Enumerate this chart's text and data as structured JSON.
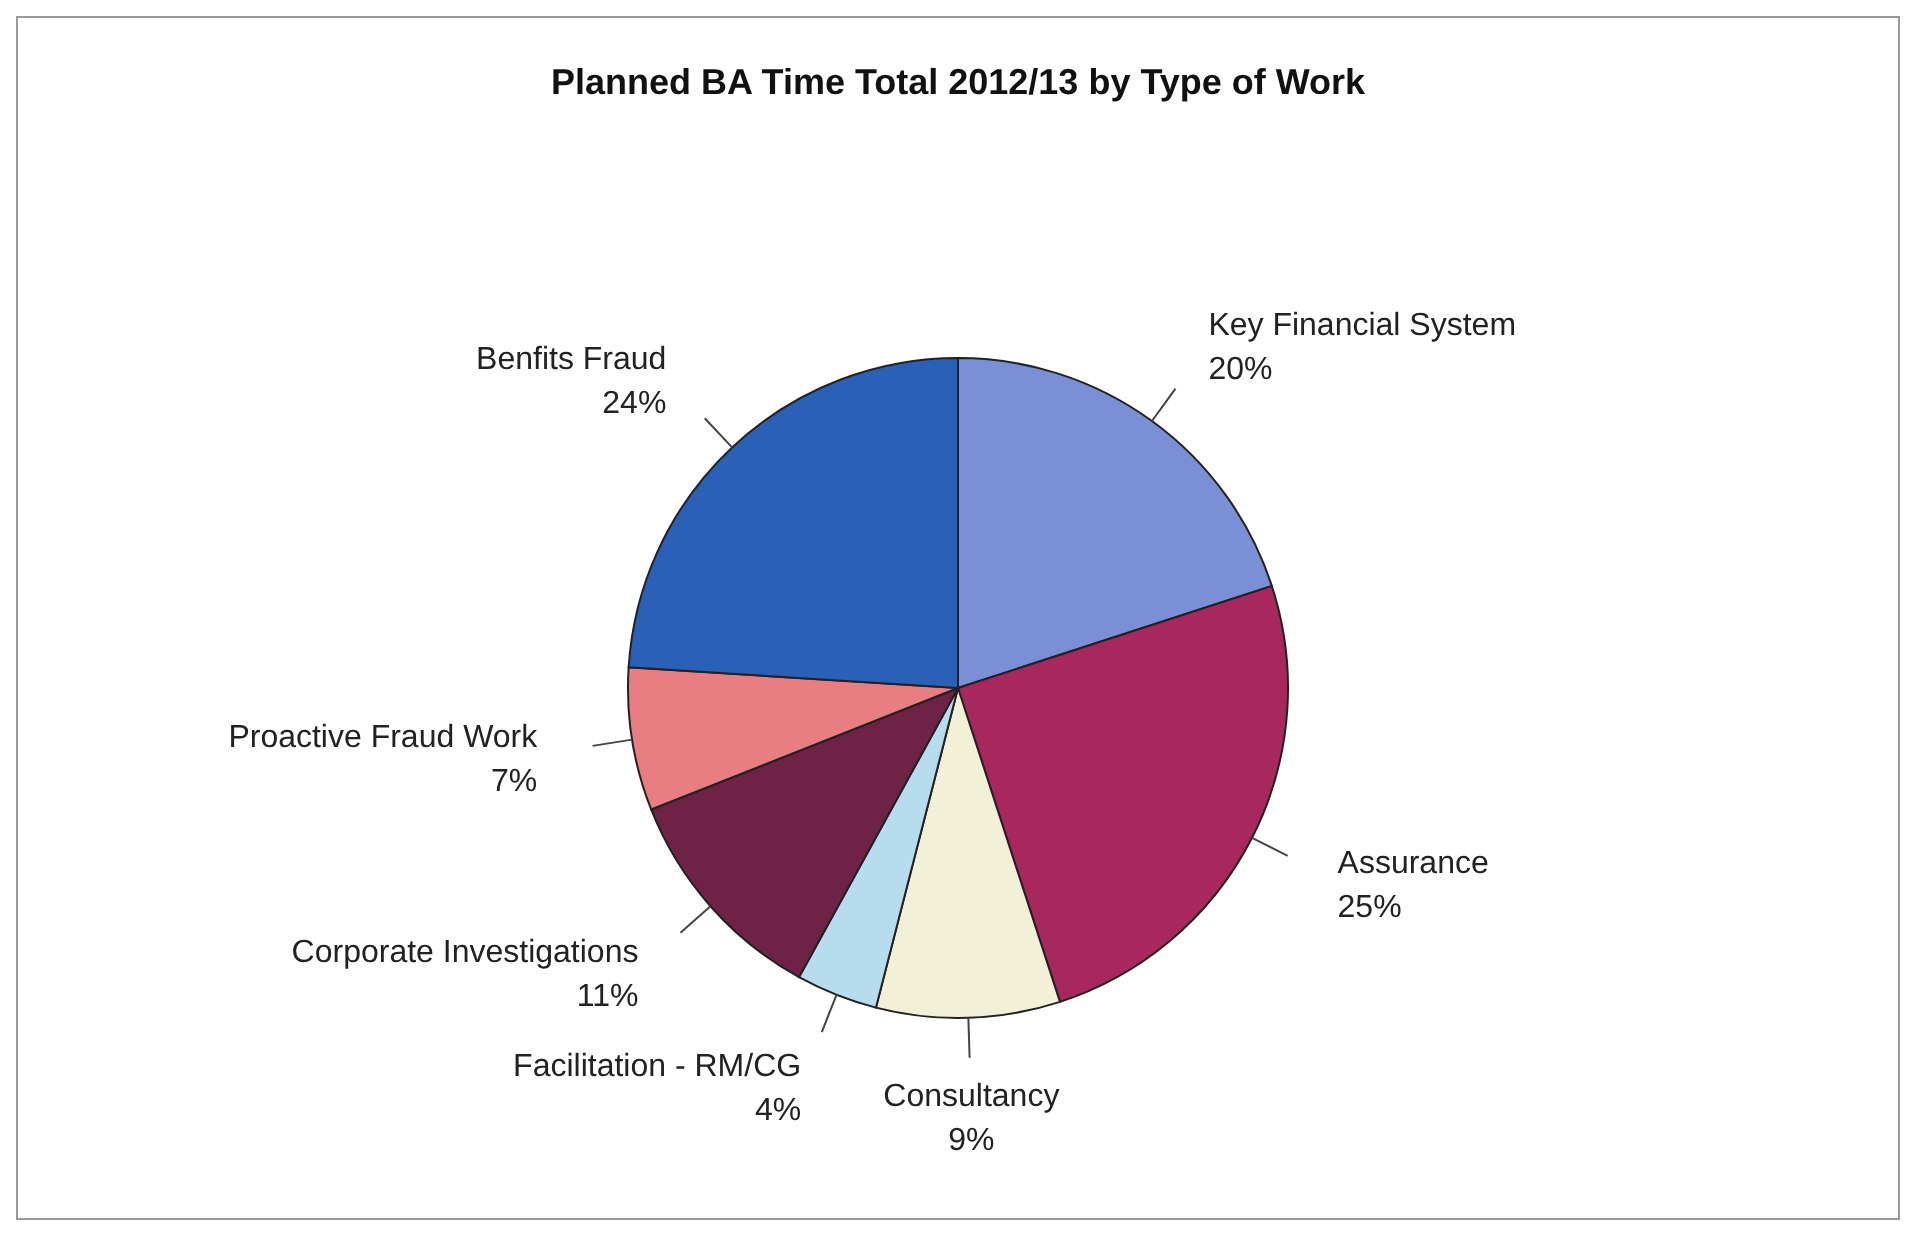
{
  "chart_data": {
    "type": "pie",
    "title": "Planned BA Time Total 2012/13 by Type of Work",
    "categories": [
      "Key Financial System",
      "Assurance",
      "Consultancy",
      "Facilitation - RM/CG",
      "Corporate Investigations",
      "Proactive Fraud Work",
      "Benfits Fraud"
    ],
    "values": [
      20,
      25,
      9,
      4,
      11,
      7,
      24
    ],
    "value_labels": [
      "20%",
      "25%",
      "9%",
      "4%",
      "11%",
      "7%",
      "24%"
    ],
    "colors": [
      "#7b8fd6",
      "#a8285e",
      "#f3f0d8",
      "#b6dcee",
      "#6e2346",
      "#e87d82",
      "#2a60b8"
    ],
    "legend": false
  }
}
